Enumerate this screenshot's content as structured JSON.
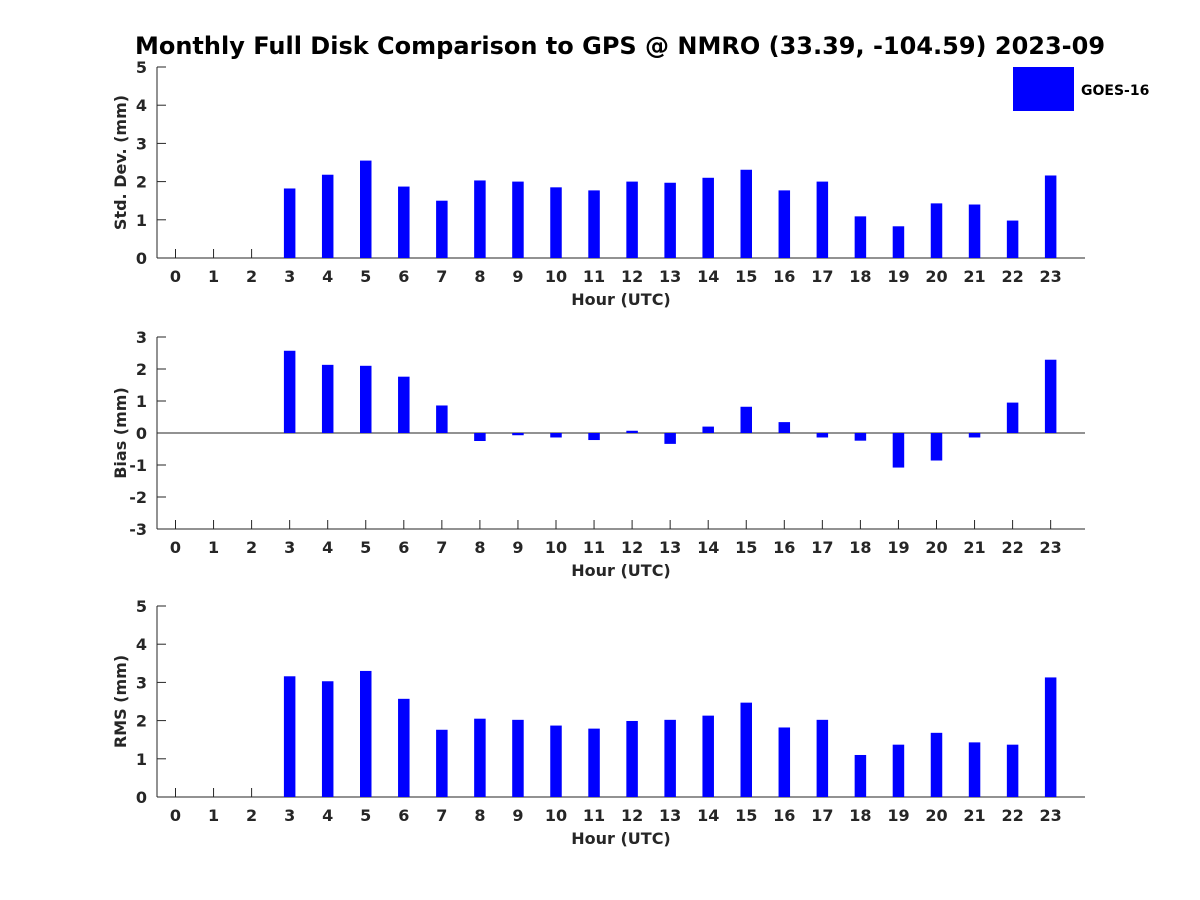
{
  "chart_data": {
    "title": "Monthly Full Disk Comparison to GPS @ NMRO (33.39, -104.59) 2023-09",
    "legend": {
      "label": "GOES-16",
      "color": "#0000ff",
      "placement": "top-right"
    },
    "bar_color": "#0000ff",
    "hours": [
      0,
      1,
      2,
      3,
      4,
      5,
      6,
      7,
      8,
      9,
      10,
      11,
      12,
      13,
      14,
      15,
      16,
      17,
      18,
      19,
      20,
      21,
      22,
      23
    ],
    "panels": [
      {
        "type": "bar",
        "name": "stddev",
        "xlabel": "Hour (UTC)",
        "ylabel": "Std. Dev. (mm)",
        "ylim": [
          0,
          5
        ],
        "yticks": [
          0,
          1,
          2,
          3,
          4,
          5
        ],
        "values": [
          null,
          null,
          null,
          1.82,
          2.18,
          2.55,
          1.87,
          1.5,
          2.03,
          2.0,
          1.85,
          1.77,
          2.0,
          1.97,
          2.1,
          2.31,
          1.77,
          2.0,
          1.09,
          0.83,
          1.43,
          1.4,
          0.98,
          2.16
        ]
      },
      {
        "type": "bar",
        "name": "bias",
        "xlabel": "Hour (UTC)",
        "ylabel": "Bias (mm)",
        "ylim": [
          -3,
          3
        ],
        "yticks": [
          -3,
          -2,
          -1,
          0,
          1,
          2,
          3
        ],
        "values": [
          null,
          null,
          null,
          2.57,
          2.13,
          2.1,
          1.76,
          0.86,
          -0.25,
          -0.07,
          -0.14,
          -0.22,
          0.07,
          -0.34,
          0.2,
          0.82,
          0.34,
          -0.14,
          -0.24,
          -1.08,
          -0.86,
          -0.14,
          0.95,
          2.29
        ]
      },
      {
        "type": "bar",
        "name": "rms",
        "xlabel": "Hour (UTC)",
        "ylabel": "RMS (mm)",
        "ylim": [
          0,
          5
        ],
        "yticks": [
          0,
          1,
          2,
          3,
          4,
          5
        ],
        "values": [
          null,
          null,
          null,
          3.16,
          3.03,
          3.3,
          2.57,
          1.76,
          2.05,
          2.02,
          1.87,
          1.79,
          1.99,
          2.02,
          2.13,
          2.47,
          1.82,
          2.02,
          1.1,
          1.37,
          1.68,
          1.43,
          1.37,
          3.13
        ]
      }
    ]
  }
}
